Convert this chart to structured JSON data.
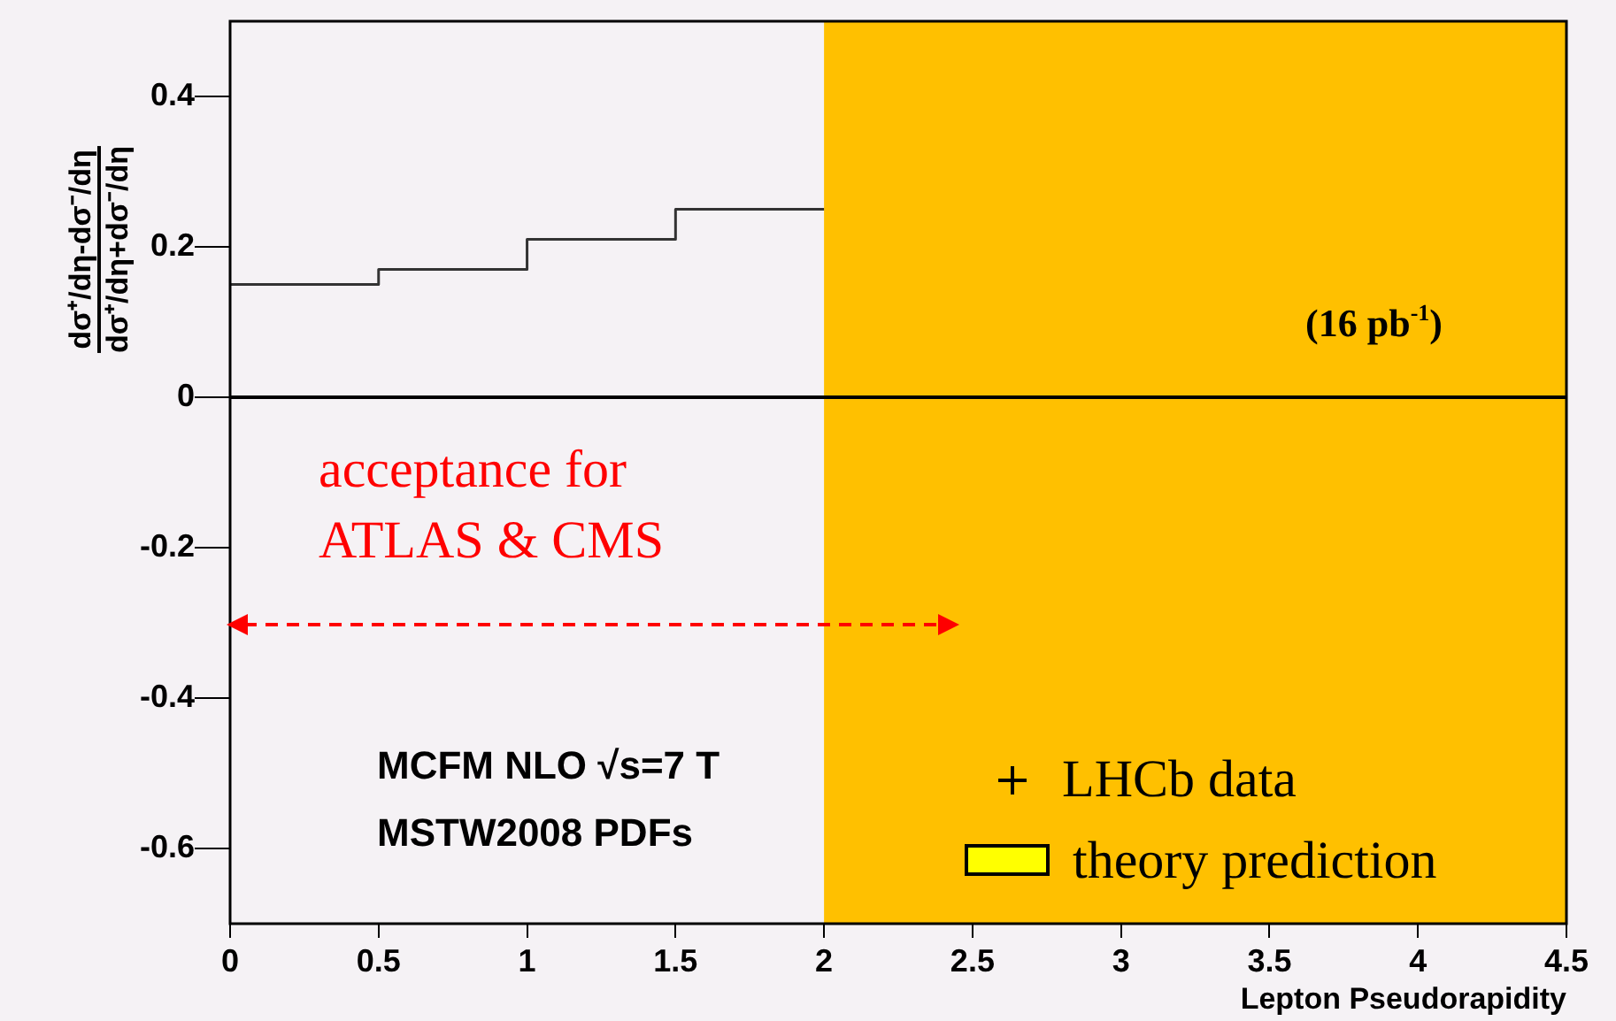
{
  "chart_data": {
    "type": "step",
    "xlabel": "Lepton Pseudorapidity",
    "ylabel": "dσ⁺/dη-dσ⁻/dη\ndσ⁺/dη+dσ⁻/dη",
    "x": [
      0,
      0.5,
      1,
      1.5,
      2
    ],
    "series": [
      {
        "color": "#333333",
        "values": [
          0.15,
          0.17,
          0.21,
          0.25,
          0.25
        ]
      }
    ],
    "xlim": [
      0,
      4.5
    ],
    "xticks": [
      0,
      0.5,
      1,
      1.5,
      2,
      2.5,
      3,
      3.5,
      4,
      4.5
    ],
    "ylim": [
      -0.7,
      0.5
    ],
    "yticks": [
      -0.6,
      -0.4,
      -0.2,
      0,
      0.2,
      0.4
    ],
    "ref_lines": [
      {
        "axis": "y",
        "value": 0,
        "color": "#000000"
      }
    ],
    "bands": [
      {
        "axis": "x",
        "from": 2,
        "to": 4.5,
        "color": "#ffc000"
      }
    ],
    "annotations": [
      "(16 pb$^{-1}$)",
      "acceptance for\nATLAS & CMS",
      "MCFM NLO √s=7 T",
      "MSTW2008 PDFs",
      "LHCb data",
      "theory prediction"
    ],
    "grid": false,
    "legend": false,
    "marker": "none",
    "line_style": "solid"
  }
}
